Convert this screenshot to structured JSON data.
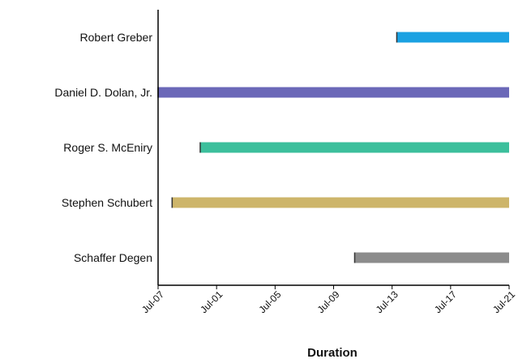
{
  "chart_data": {
    "type": "bar",
    "orientation": "horizontal",
    "xlabel": "Duration",
    "ylabel": "",
    "x_tick_labels": [
      "Jul-07",
      "Jul-01",
      "Jul-05",
      "Jul-09",
      "Jul-13",
      "Jul-17",
      "Jul-21"
    ],
    "categories": [
      "Robert Greber",
      "Daniel D. Dolan, Jr.",
      "Roger S. McEniry",
      "Stephen Schubert",
      "Schaffer Degen"
    ],
    "bars": [
      {
        "category": "Robert Greber",
        "start": "2024-07-14",
        "end": "2024-07-22",
        "color": "#1ba1e2"
      },
      {
        "category": "Daniel D. Dolan, Jr.",
        "start": "2024-06-27",
        "end": "2024-07-22",
        "color": "#6b68b8"
      },
      {
        "category": "Roger S. McEniry",
        "start": "2024-06-30",
        "end": "2024-07-22",
        "color": "#3cbf9c"
      },
      {
        "category": "Stephen Schubert",
        "start": "2024-06-28",
        "end": "2024-07-22",
        "color": "#cdb56a"
      },
      {
        "category": "Schaffer Degen",
        "start": "2024-07-11",
        "end": "2024-07-22",
        "color": "#8c8c8c"
      }
    ],
    "grid": false,
    "legend": "none"
  }
}
